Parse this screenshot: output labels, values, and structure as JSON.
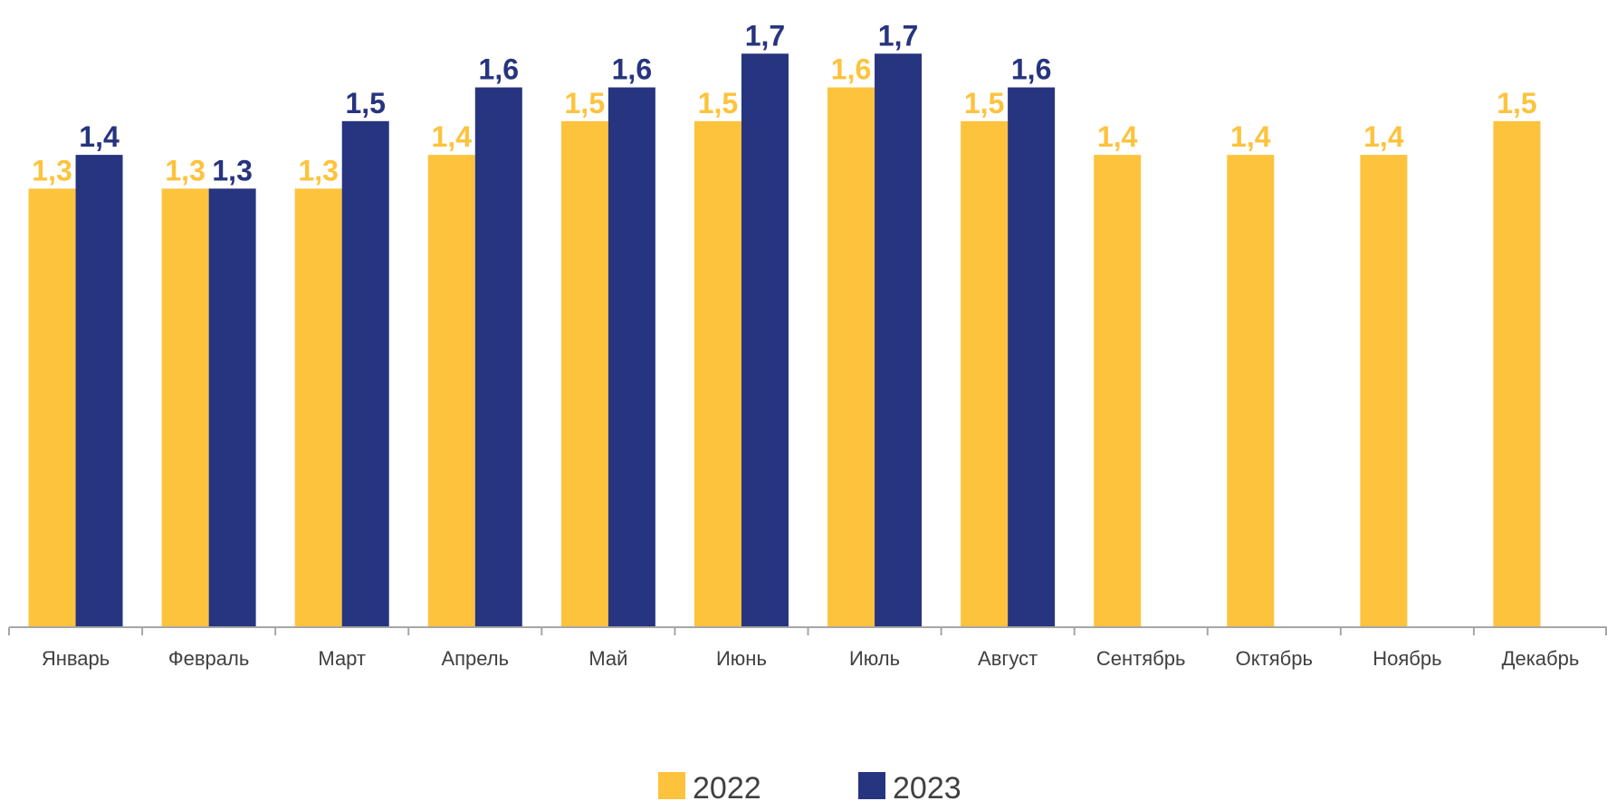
{
  "chart_data": {
    "type": "bar",
    "categories": [
      "Январь",
      "Февраль",
      "Март",
      "Апрель",
      "Май",
      "Июнь",
      "Июль",
      "Август",
      "Сентябрь",
      "Октябрь",
      "Ноябрь",
      "Декабрь"
    ],
    "series": [
      {
        "name": "2022",
        "color": "#FDC33D",
        "values": [
          1.3,
          1.3,
          1.3,
          1.4,
          1.5,
          1.5,
          1.6,
          1.5,
          1.4,
          1.4,
          1.4,
          1.5
        ],
        "labels": [
          "1,3",
          "1,3",
          "1,3",
          "1,4",
          "1,5",
          "1,5",
          "1,6",
          "1,5",
          "1,4",
          "1,4",
          "1,4",
          "1,5"
        ]
      },
      {
        "name": "2023",
        "color": "#27347F",
        "values": [
          1.4,
          1.3,
          1.5,
          1.6,
          1.6,
          1.7,
          1.7,
          1.6,
          null,
          null,
          null,
          null
        ],
        "labels": [
          "1,4",
          "1,3",
          "1,5",
          "1,6",
          "1,6",
          "1,7",
          "1,7",
          "1,6",
          null,
          null,
          null,
          null
        ]
      }
    ],
    "ylim": [
      0,
      1.8
    ],
    "grid": false,
    "legend": "bottom-center",
    "axis_color": "#A6A6A6"
  }
}
